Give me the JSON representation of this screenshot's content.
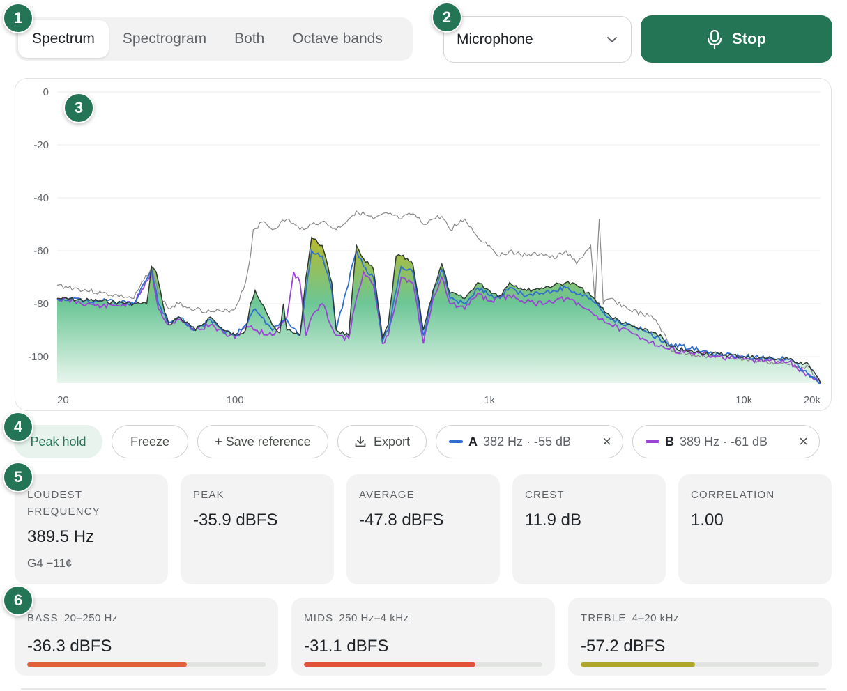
{
  "tabs": [
    "Spectrum",
    "Spectrogram",
    "Both",
    "Octave bands"
  ],
  "active_tab": "Spectrum",
  "source": {
    "selected": "Microphone",
    "icon": "chevron-down-icon"
  },
  "stop_button": {
    "label": "Stop",
    "icon": "microphone-icon"
  },
  "badges": [
    "1",
    "2",
    "3",
    "4",
    "5",
    "6"
  ],
  "colors": {
    "accent": "#237556",
    "cursor_a": "#2f6fd0",
    "cursor_b": "#9a44d4",
    "reference": "#8a8a8a",
    "live": "#2e3a33",
    "bass_bar": "#e0603a",
    "mids_bar": "#e05238",
    "treble_bar": "#b0a62a"
  },
  "chart_data": {
    "type": "area",
    "x_scale": "log",
    "xlim": [
      20,
      20000
    ],
    "ylim": [
      -110,
      0
    ],
    "xticks": [
      {
        "value": 20,
        "label": "20"
      },
      {
        "value": 100,
        "label": "100"
      },
      {
        "value": 1000,
        "label": "1k"
      },
      {
        "value": 10000,
        "label": "10k"
      },
      {
        "value": 20000,
        "label": "20k"
      }
    ],
    "yticks": [
      {
        "value": 0,
        "label": "0"
      },
      {
        "value": -20,
        "label": "-20"
      },
      {
        "value": -40,
        "label": "-40"
      },
      {
        "value": -60,
        "label": "-60"
      },
      {
        "value": -80,
        "label": "-80"
      },
      {
        "value": -100,
        "label": "-100"
      }
    ],
    "grid": true,
    "legend": "none",
    "series": [
      {
        "role": "reference",
        "x": [
          20,
          30,
          40,
          47,
          50,
          55,
          60,
          70,
          80,
          90,
          100,
          110,
          115,
          118,
          130,
          140,
          160,
          180,
          200,
          220,
          250,
          280,
          300,
          350,
          400,
          450,
          500,
          550,
          600,
          650,
          700,
          800,
          900,
          1000,
          1100,
          1200,
          1400,
          1600,
          1800,
          2000,
          2200,
          2500,
          2600,
          2700,
          2800,
          3000,
          3500,
          4000,
          4500,
          5000,
          5200,
          6000,
          8000,
          10000,
          15000,
          18000,
          20000
        ],
        "y": [
          -73,
          -76,
          -78,
          -66,
          -76,
          -82,
          -80,
          -82,
          -83,
          -83,
          -82,
          -72,
          -62,
          -52,
          -49,
          -52,
          -48,
          -52,
          -50,
          -49,
          -52,
          -48,
          -45,
          -48,
          -46,
          -48,
          -46,
          -50,
          -48,
          -47,
          -52,
          -48,
          -55,
          -58,
          -62,
          -60,
          -62,
          -61,
          -63,
          -60,
          -65,
          -58,
          -80,
          -48,
          -80,
          -78,
          -82,
          -84,
          -86,
          -94,
          -98,
          -99,
          -100,
          -101,
          -103,
          -104,
          -110
        ]
      },
      {
        "role": "live",
        "x": [
          20,
          30,
          40,
          45,
          47,
          49,
          52,
          55,
          60,
          70,
          80,
          90,
          100,
          110,
          115,
          120,
          140,
          150,
          155,
          160,
          180,
          190,
          200,
          220,
          240,
          250,
          280,
          300,
          320,
          350,
          380,
          400,
          430,
          450,
          500,
          550,
          600,
          650,
          700,
          800,
          900,
          1000,
          1100,
          1200,
          1400,
          1600,
          1800,
          2000,
          2200,
          2500,
          3000,
          3500,
          4000,
          4500,
          4800,
          5000,
          6000,
          8000,
          10000,
          15000,
          18000,
          20000
        ],
        "y": [
          -78,
          -79,
          -80,
          -80,
          -66,
          -68,
          -80,
          -88,
          -85,
          -90,
          -85,
          -90,
          -92,
          -90,
          -80,
          -75,
          -88,
          -91,
          -80,
          -90,
          -92,
          -70,
          -55,
          -58,
          -72,
          -90,
          -92,
          -58,
          -63,
          -67,
          -93,
          -88,
          -62,
          -62,
          -65,
          -90,
          -75,
          -65,
          -76,
          -78,
          -72,
          -75,
          -77,
          -72,
          -75,
          -74,
          -73,
          -72,
          -73,
          -77,
          -85,
          -88,
          -90,
          -91,
          -93,
          -96,
          -98,
          -99,
          -100,
          -101,
          -103,
          -110
        ]
      },
      {
        "role": "cursor-a",
        "x": [
          20,
          30,
          40,
          47,
          50,
          55,
          60,
          70,
          80,
          90,
          100,
          110,
          120,
          140,
          160,
          180,
          190,
          200,
          220,
          240,
          250,
          300,
          320,
          350,
          380,
          400,
          450,
          500,
          550,
          600,
          650,
          700,
          800,
          900,
          1000,
          1100,
          1200,
          1400,
          1600,
          1800,
          2000,
          2500,
          3000,
          4000,
          5000,
          8000,
          10000,
          15000,
          20000
        ],
        "y": [
          -78,
          -79,
          -80,
          -67,
          -80,
          -87,
          -85,
          -90,
          -86,
          -90,
          -92,
          -88,
          -82,
          -90,
          -86,
          -92,
          -75,
          -60,
          -62,
          -75,
          -90,
          -60,
          -66,
          -70,
          -94,
          -90,
          -66,
          -68,
          -92,
          -76,
          -67,
          -78,
          -80,
          -74,
          -77,
          -78,
          -74,
          -77,
          -76,
          -75,
          -74,
          -78,
          -86,
          -90,
          -95,
          -99,
          -100,
          -101,
          -110
        ]
      },
      {
        "role": "cursor-b",
        "x": [
          20,
          30,
          40,
          47,
          50,
          55,
          60,
          70,
          80,
          90,
          100,
          110,
          120,
          140,
          160,
          170,
          180,
          190,
          200,
          220,
          250,
          280,
          300,
          320,
          350,
          380,
          400,
          450,
          500,
          550,
          600,
          650,
          700,
          800,
          900,
          1000,
          1200,
          1500,
          2000,
          2500,
          3000,
          4000,
          5000,
          8000,
          10000,
          15000,
          20000
        ],
        "y": [
          -78,
          -81,
          -80,
          -68,
          -82,
          -88,
          -86,
          -90,
          -88,
          -91,
          -93,
          -88,
          -90,
          -92,
          -85,
          -68,
          -72,
          -92,
          -85,
          -80,
          -92,
          -93,
          -78,
          -68,
          -73,
          -95,
          -92,
          -70,
          -72,
          -95,
          -78,
          -70,
          -80,
          -82,
          -76,
          -79,
          -77,
          -80,
          -78,
          -83,
          -88,
          -93,
          -97,
          -100,
          -101,
          -102,
          -110
        ]
      }
    ]
  },
  "toolbar": {
    "peak_hold": "Peak hold",
    "freeze": "Freeze",
    "save_reference": "+ Save reference",
    "export": "Export",
    "cursor_a": {
      "label": "A",
      "value": "382 Hz · -55 dB"
    },
    "cursor_b": {
      "label": "B",
      "value": "389 Hz · -61 dB"
    },
    "close": "×"
  },
  "stats": [
    {
      "label": "LOUDEST FREQUENCY",
      "value": "389.5 Hz",
      "sub": "G4 −11¢"
    },
    {
      "label": "PEAK",
      "value": "-35.9 dBFS"
    },
    {
      "label": "AVERAGE",
      "value": "-47.8 dBFS"
    },
    {
      "label": "CREST",
      "value": "11.9 dB"
    },
    {
      "label": "CORRELATION",
      "value": "1.00"
    }
  ],
  "bands": [
    {
      "label": "BASS",
      "range": "20–250 Hz",
      "value": "-36.3 dBFS",
      "level": 0.67
    },
    {
      "label": "MIDS",
      "range": "250 Hz–4 kHz",
      "value": "-31.1 dBFS",
      "level": 0.72
    },
    {
      "label": "TREBLE",
      "range": "4–20 kHz",
      "value": "-57.2 dBFS",
      "level": 0.48
    }
  ]
}
